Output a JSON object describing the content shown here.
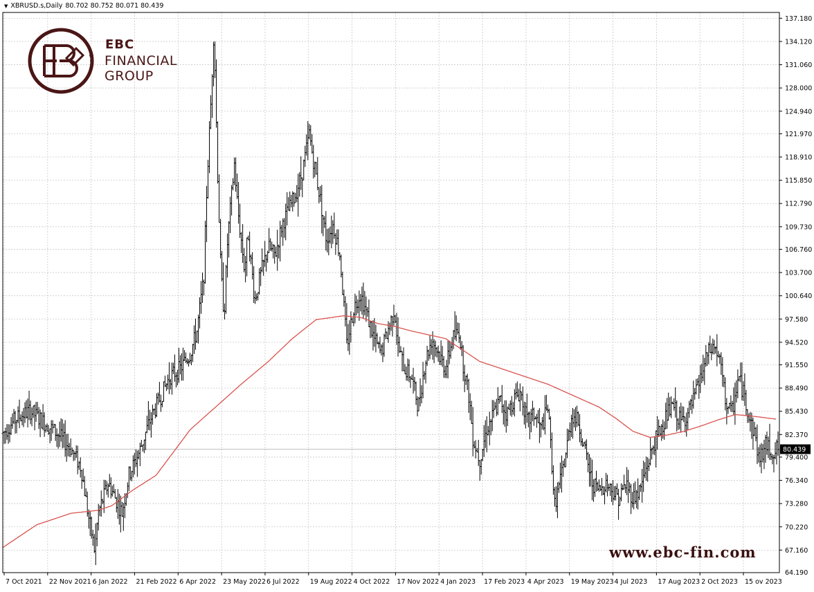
{
  "header": {
    "symbol": "XBRUSD.s,Daily",
    "ohlc": "80.702 80.752 80.071 80.439"
  },
  "logo": {
    "line1": "EBC",
    "line2": "FINANCIAL",
    "line3": "GROUP"
  },
  "watermark": "www.ebc-fin.com",
  "colors": {
    "candles": "#000000",
    "moving_average": "#d9534f",
    "grid": "#c8c8c8",
    "price_line": "#c0c0c0",
    "logo": "#4a1616"
  },
  "chart_data": {
    "type": "bar",
    "style": "ohlc-bars",
    "grid": true,
    "current_price": 80.439,
    "current_price_label": "80.439",
    "ylim": [
      64.19,
      137.94
    ],
    "y_ticks": [
      67.16,
      70.22,
      73.28,
      76.34,
      79.4,
      82.37,
      85.43,
      88.49,
      91.55,
      94.52,
      97.58,
      100.64,
      103.7,
      106.76,
      109.73,
      112.79,
      115.85,
      118.91,
      121.97,
      124.94,
      128.0,
      131.06,
      134.12,
      137.18
    ],
    "y_tick_labels": [
      "67.160",
      "70.220",
      "73.280",
      "76.340",
      "79.400",
      "82.370",
      "85.430",
      "88.490",
      "91.550",
      "94.520",
      "97.580",
      "100.640",
      "103.700",
      "106.760",
      "109.730",
      "112.790",
      "115.850",
      "118.910",
      "121.970",
      "124.940",
      "128.000",
      "131.060",
      "134.120",
      "137.180"
    ],
    "y_bottom_label": "64.190",
    "x_tick_labels": [
      "7 Oct 2021",
      "22 Nov 2021",
      "6 Jan 2022",
      "21 Feb 2022",
      "6 Apr 2022",
      "23 May 2022",
      "6 Jul 2022",
      "19 Aug 2022",
      "4 Oct 2022",
      "17 Nov 2022",
      "4 Jan 2023",
      "17 Feb 2023",
      "4 Apr 2023",
      "19 May 2023",
      "4 Jul 2023",
      "17 Aug 2023",
      "2 Oct 2023",
      "15 Nov 2023"
    ],
    "x_tick_label_last_visible": "15 ov 2023",
    "price_path": [
      [
        0,
        82.5
      ],
      [
        4,
        84.5
      ],
      [
        8,
        85.5
      ],
      [
        12,
        84
      ],
      [
        16,
        82.5
      ],
      [
        20,
        80.5
      ],
      [
        23,
        78
      ],
      [
        25,
        72
      ],
      [
        27,
        67
      ],
      [
        28,
        72
      ],
      [
        31,
        76
      ],
      [
        33,
        74
      ],
      [
        35,
        72
      ],
      [
        37,
        77
      ],
      [
        40,
        80
      ],
      [
        43,
        84
      ],
      [
        46,
        87
      ],
      [
        49,
        90
      ],
      [
        52,
        91
      ],
      [
        55,
        93
      ],
      [
        57,
        96
      ],
      [
        59,
        103
      ],
      [
        60,
        116
      ],
      [
        61,
        125
      ],
      [
        62,
        136
      ],
      [
        63,
        118
      ],
      [
        64,
        104
      ],
      [
        65,
        98
      ],
      [
        66,
        108
      ],
      [
        68,
        118
      ],
      [
        69,
        112
      ],
      [
        71,
        104
      ],
      [
        72,
        109
      ],
      [
        74,
        100
      ],
      [
        76,
        104
      ],
      [
        78,
        107
      ],
      [
        80,
        106
      ],
      [
        82,
        110
      ],
      [
        84,
        112
      ],
      [
        86,
        114
      ],
      [
        88,
        117
      ],
      [
        90,
        122
      ],
      [
        91,
        119
      ],
      [
        93,
        114
      ],
      [
        95,
        108
      ],
      [
        97,
        110
      ],
      [
        99,
        106
      ],
      [
        100,
        100
      ],
      [
        101,
        94
      ],
      [
        103,
        99
      ],
      [
        105,
        101
      ],
      [
        107,
        98
      ],
      [
        109,
        95
      ],
      [
        111,
        93
      ],
      [
        113,
        96
      ],
      [
        115,
        99
      ],
      [
        116,
        94
      ],
      [
        118,
        91
      ],
      [
        120,
        90
      ],
      [
        122,
        86
      ],
      [
        124,
        92
      ],
      [
        126,
        95
      ],
      [
        128,
        93
      ],
      [
        130,
        91
      ],
      [
        132,
        95
      ],
      [
        134,
        96
      ],
      [
        135,
        92
      ],
      [
        137,
        87
      ],
      [
        138,
        82
      ],
      [
        140,
        79
      ],
      [
        142,
        83
      ],
      [
        144,
        85
      ],
      [
        146,
        87
      ],
      [
        148,
        85
      ],
      [
        150,
        87
      ],
      [
        152,
        88
      ],
      [
        154,
        84
      ],
      [
        156,
        85
      ],
      [
        158,
        83
      ],
      [
        160,
        86
      ],
      [
        161,
        80
      ],
      [
        162,
        73
      ],
      [
        163,
        75
      ],
      [
        165,
        79
      ],
      [
        167,
        85
      ],
      [
        169,
        84
      ],
      [
        171,
        80
      ],
      [
        173,
        76
      ],
      [
        175,
        75
      ],
      [
        177,
        76
      ],
      [
        179,
        75
      ],
      [
        181,
        74
      ],
      [
        183,
        76
      ],
      [
        185,
        74
      ],
      [
        187,
        75
      ],
      [
        189,
        78
      ],
      [
        191,
        81
      ],
      [
        193,
        83
      ],
      [
        195,
        85
      ],
      [
        197,
        86
      ],
      [
        199,
        84
      ],
      [
        201,
        85
      ],
      [
        203,
        87
      ],
      [
        205,
        90
      ],
      [
        207,
        93
      ],
      [
        209,
        94
      ],
      [
        211,
        91
      ],
      [
        212,
        87
      ],
      [
        214,
        85
      ],
      [
        216,
        90
      ],
      [
        218,
        87
      ],
      [
        219,
        85
      ],
      [
        221,
        82
      ],
      [
        222,
        79
      ],
      [
        224,
        81
      ],
      [
        226,
        80
      ],
      [
        227,
        80.439
      ]
    ],
    "series": [
      {
        "values_note": "",
        "style": "smooth",
        "path": [
          [
            0,
            67.5
          ],
          [
            10,
            70.5
          ],
          [
            20,
            72
          ],
          [
            28,
            72.4
          ],
          [
            32,
            73
          ],
          [
            38,
            75
          ],
          [
            45,
            77
          ],
          [
            50,
            80
          ],
          [
            55,
            83
          ],
          [
            60,
            85
          ],
          [
            65,
            87
          ],
          [
            70,
            89
          ],
          [
            78,
            92
          ],
          [
            85,
            95
          ],
          [
            92,
            97.5
          ],
          [
            100,
            98
          ],
          [
            105,
            97.8
          ],
          [
            110,
            97
          ],
          [
            115,
            96.6
          ],
          [
            120,
            96
          ],
          [
            130,
            95
          ],
          [
            140,
            92
          ],
          [
            150,
            90.5
          ],
          [
            160,
            89
          ],
          [
            170,
            87
          ],
          [
            175,
            86
          ],
          [
            180,
            84.5
          ],
          [
            185,
            82.8
          ],
          [
            190,
            82
          ],
          [
            195,
            82.3
          ],
          [
            200,
            82.8
          ],
          [
            205,
            83.5
          ],
          [
            210,
            84.3
          ],
          [
            215,
            85
          ],
          [
            220,
            84.8
          ],
          [
            227,
            84.4
          ]
        ]
      }
    ],
    "xlim": [
      0,
      228
    ]
  }
}
